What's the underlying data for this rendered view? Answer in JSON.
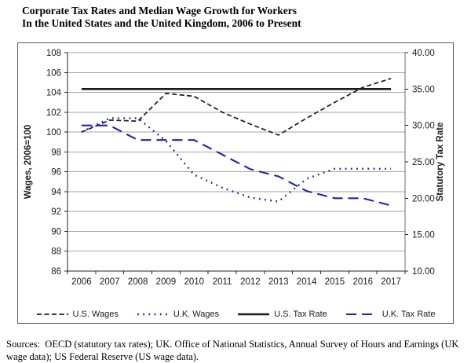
{
  "title": {
    "line1": "Corporate Tax Rates and Median Wage Growth for Workers",
    "line2": "In the United States and the United Kingdom, 2006 to Present"
  },
  "chart_data": {
    "type": "line",
    "title": "Corporate Tax Rates and Median Wage Growth for Workers In the United States and the United Kingdom, 2006 to Present",
    "xlabel": "",
    "x": [
      2006,
      2007,
      2008,
      2009,
      2010,
      2011,
      2012,
      2013,
      2014,
      2015,
      2016,
      2017
    ],
    "left_axis": {
      "label": "Wages, 2006=100",
      "min": 86,
      "max": 108,
      "step": 2,
      "decimals": 0
    },
    "right_axis": {
      "label": "Statutory Tax Rate",
      "min": 10,
      "max": 40,
      "step": 5,
      "decimals": 2
    },
    "grid": true,
    "legend_position": "bottom",
    "colors": {
      "black": "#1a1a1a",
      "navy": "#2323aa",
      "gridline": "#a6a6a6",
      "frame": "#58595b"
    },
    "series": [
      {
        "name": "U.S. Wages",
        "axis": "left",
        "style": "dashed",
        "color": "#1a1a1a",
        "values": [
          100.0,
          101.2,
          101.1,
          103.9,
          103.6,
          102.0,
          100.8,
          99.7,
          101.4,
          103.0,
          104.5,
          105.4
        ]
      },
      {
        "name": "U.K. Wages",
        "axis": "left",
        "style": "dotted",
        "color": "#2323aa",
        "values": [
          100.0,
          101.4,
          101.4,
          99.1,
          95.7,
          94.4,
          93.4,
          93.0,
          95.3,
          96.3,
          96.3,
          96.3
        ]
      },
      {
        "name": "U.S. Tax Rate",
        "axis": "right",
        "style": "solid",
        "color": "#1a1a1a",
        "values": [
          35,
          35,
          35,
          35,
          35,
          35,
          35,
          35,
          35,
          35,
          35,
          35
        ]
      },
      {
        "name": "U.K. Tax Rate",
        "axis": "right",
        "style": "longdash",
        "color": "#2323aa",
        "values": [
          30,
          30,
          28,
          28,
          28,
          26,
          24,
          23,
          21,
          20,
          20,
          19
        ]
      }
    ]
  },
  "sources": "Sources:  OECD (statutory tax rates); UK. Office of National Statistics, Annual Survey of Hours and Earnings (UK wage data); US Federal Reserve (US wage data)."
}
